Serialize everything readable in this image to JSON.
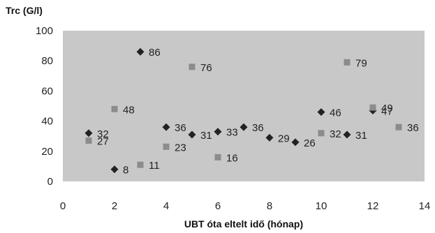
{
  "chart_data": {
    "type": "scatter",
    "title": "",
    "ylabel": "Trc (G/l)",
    "xlabel": "UBT óta eltelt idő (hónap)",
    "xlim": [
      0,
      14
    ],
    "ylim": [
      0,
      100
    ],
    "x_ticks": [
      0,
      2,
      4,
      6,
      8,
      10,
      12,
      14
    ],
    "y_ticks": [
      0,
      20,
      40,
      60,
      80,
      100
    ],
    "grid": false,
    "legend": "none",
    "plot_background": "#c8c8c8",
    "series": [
      {
        "marker": "diamond",
        "color": "#222222",
        "points": [
          {
            "x": 1,
            "y": 32,
            "label": "32"
          },
          {
            "x": 2,
            "y": 8,
            "label": "8"
          },
          {
            "x": 3,
            "y": 86,
            "label": "86"
          },
          {
            "x": 4,
            "y": 36,
            "label": "36"
          },
          {
            "x": 5,
            "y": 31,
            "label": "31"
          },
          {
            "x": 6,
            "y": 33,
            "label": "33"
          },
          {
            "x": 7,
            "y": 36,
            "label": "36"
          },
          {
            "x": 8,
            "y": 29,
            "label": "29"
          },
          {
            "x": 9,
            "y": 26,
            "label": "26"
          },
          {
            "x": 10,
            "y": 46,
            "label": "46"
          },
          {
            "x": 11,
            "y": 31,
            "label": "31"
          },
          {
            "x": 12,
            "y": 47,
            "label": "47"
          }
        ]
      },
      {
        "marker": "square",
        "color": "#8c8c8c",
        "points": [
          {
            "x": 1,
            "y": 27,
            "label": "27"
          },
          {
            "x": 2,
            "y": 48,
            "label": "48"
          },
          {
            "x": 3,
            "y": 11,
            "label": "11"
          },
          {
            "x": 4,
            "y": 23,
            "label": "23"
          },
          {
            "x": 5,
            "y": 76,
            "label": "76"
          },
          {
            "x": 6,
            "y": 16,
            "label": "16"
          },
          {
            "x": 10,
            "y": 32,
            "label": "32"
          },
          {
            "x": 11,
            "y": 79,
            "label": "79"
          },
          {
            "x": 12,
            "y": 49,
            "label": "49"
          },
          {
            "x": 13,
            "y": 36,
            "label": "36"
          }
        ]
      }
    ]
  }
}
